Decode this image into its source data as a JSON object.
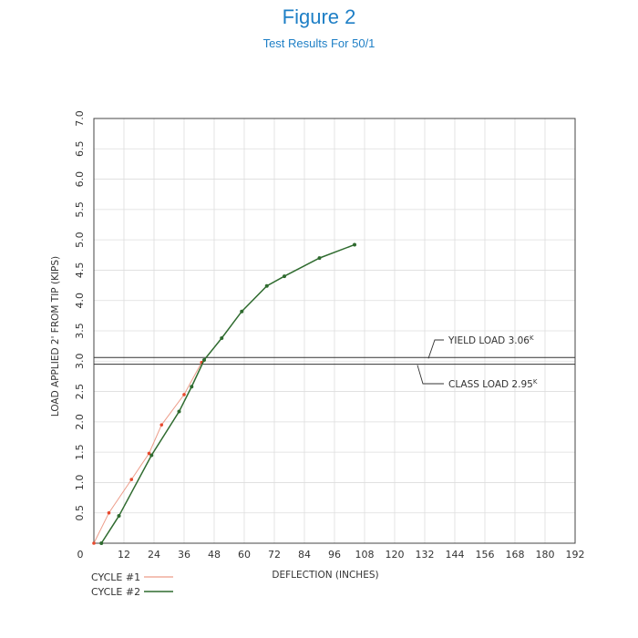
{
  "header": {
    "title": "Figure 2",
    "subtitle": "Test Results For 50/1"
  },
  "chart_data": {
    "type": "line",
    "xlabel": "DEFLECTION (INCHES)",
    "ylabel": "LOAD APPLIED 2' FROM TIP (KIPS)",
    "xlim": [
      0,
      192
    ],
    "ylim": [
      0,
      7.0
    ],
    "x_ticks": [
      "0",
      "12",
      "24",
      "36",
      "48",
      "60",
      "72",
      "84",
      "96",
      "108",
      "120",
      "132",
      "144",
      "156",
      "168",
      "180",
      "192"
    ],
    "y_ticks": [
      "0.5",
      "1.0",
      "1.5",
      "2.0",
      "2.5",
      "3.0",
      "3.5",
      "4.0",
      "4.5",
      "5.0",
      "5.5",
      "6.0",
      "6.5",
      "7.0"
    ],
    "y_tick_values": [
      0.5,
      1.0,
      1.5,
      2.0,
      2.5,
      3.0,
      3.5,
      4.0,
      4.5,
      5.0,
      5.5,
      6.0,
      6.5,
      7.0
    ],
    "x_tick_values": [
      0,
      12,
      24,
      36,
      48,
      60,
      72,
      84,
      96,
      108,
      120,
      132,
      144,
      156,
      168,
      180,
      192
    ],
    "grid": true,
    "legend_position": "bottom-left",
    "series": [
      {
        "name": "CYCLE #1",
        "color": "#e8836b",
        "points": [
          [
            0,
            0
          ],
          [
            6,
            0.5
          ],
          [
            15,
            1.05
          ],
          [
            22,
            1.48
          ],
          [
            27,
            1.95
          ],
          [
            36,
            2.45
          ],
          [
            43,
            2.98
          ]
        ]
      },
      {
        "name": "CYCLE #2",
        "color": "#2f6b2f",
        "points": [
          [
            3,
            0
          ],
          [
            10,
            0.45
          ],
          [
            23,
            1.45
          ],
          [
            34,
            2.17
          ],
          [
            39,
            2.58
          ],
          [
            44,
            3.02
          ],
          [
            51,
            3.38
          ],
          [
            59,
            3.82
          ],
          [
            69,
            4.24
          ],
          [
            76,
            4.4
          ],
          [
            90,
            4.7
          ],
          [
            104,
            4.92
          ]
        ]
      }
    ],
    "reference_lines": [
      {
        "label": "YIELD LOAD 3.06",
        "superscript": "K",
        "value": 3.06
      },
      {
        "label": "CLASS LOAD 2.95",
        "superscript": "K",
        "value": 2.95
      }
    ]
  }
}
